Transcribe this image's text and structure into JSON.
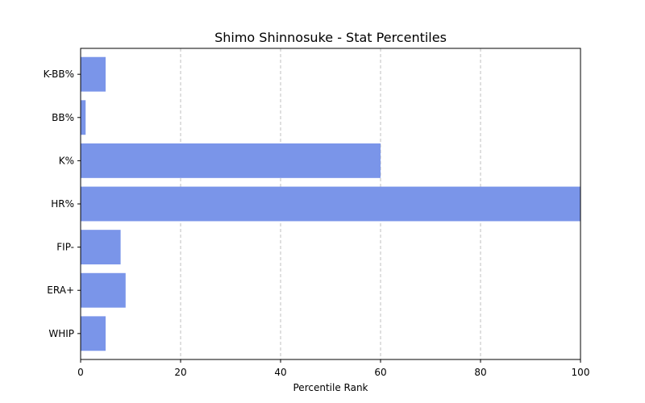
{
  "chart_data": {
    "type": "bar",
    "orientation": "horizontal",
    "title": "Shimo Shinnosuke - Stat Percentiles",
    "xlabel": "Percentile Rank",
    "ylabel": "",
    "categories": [
      "K-BB%",
      "BB%",
      "K%",
      "HR%",
      "FIP-",
      "ERA+",
      "WHIP"
    ],
    "values": [
      5,
      1,
      60,
      100,
      8,
      9,
      5
    ],
    "xlim": [
      0,
      100
    ],
    "xticks": [
      0,
      20,
      40,
      60,
      80,
      100
    ],
    "grid": "x-dashed",
    "bar_color": "#7a95e9"
  }
}
